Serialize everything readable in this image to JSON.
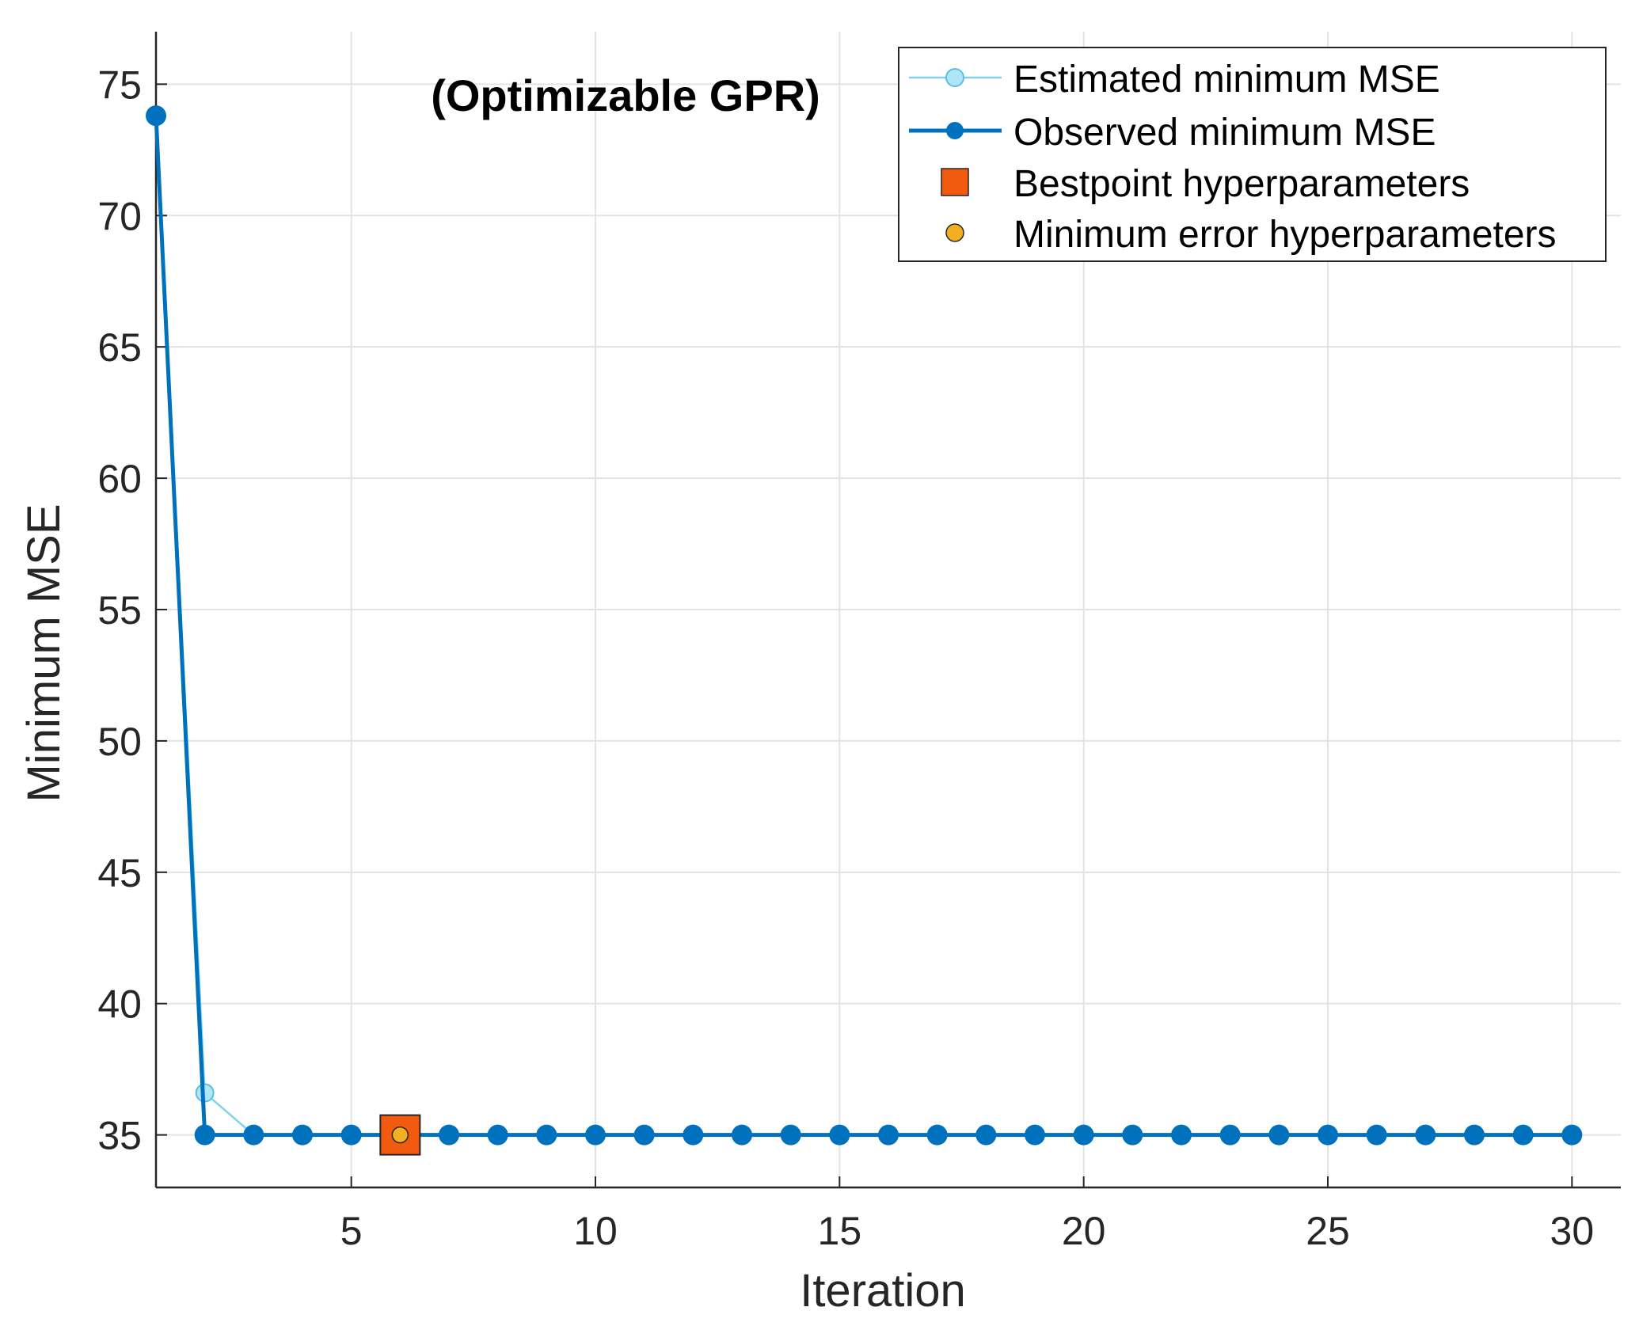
{
  "chart_data": {
    "type": "line",
    "title": "(Optimizable GPR)",
    "xlabel": "Iteration",
    "ylabel": "Minimum MSE",
    "xlim": [
      1,
      31
    ],
    "ylim": [
      33,
      77
    ],
    "xticks": [
      5,
      10,
      15,
      20,
      25,
      30
    ],
    "yticks": [
      35,
      40,
      45,
      50,
      55,
      60,
      65,
      70,
      75
    ],
    "grid": true,
    "legend_position": "top-right",
    "series": [
      {
        "name": "Estimated minimum MSE",
        "color": "#7fd3ef",
        "x": [
          1,
          2,
          3,
          4,
          5,
          6,
          7,
          8,
          9,
          10,
          11,
          12,
          13,
          14,
          15,
          16,
          17,
          18,
          19,
          20,
          21,
          22,
          23,
          24,
          25,
          26,
          27,
          28,
          29,
          30
        ],
        "y": [
          73.8,
          36.6,
          35,
          35,
          35,
          35,
          35,
          35,
          35,
          35,
          35,
          35,
          35,
          35,
          35,
          35,
          35,
          35,
          35,
          35,
          35,
          35,
          35,
          35,
          35,
          35,
          35,
          35,
          35,
          35
        ]
      },
      {
        "name": "Observed minimum MSE",
        "color": "#0072bd",
        "x": [
          1,
          2,
          3,
          4,
          5,
          6,
          7,
          8,
          9,
          10,
          11,
          12,
          13,
          14,
          15,
          16,
          17,
          18,
          19,
          20,
          21,
          22,
          23,
          24,
          25,
          26,
          27,
          28,
          29,
          30
        ],
        "y": [
          73.8,
          35,
          35,
          35,
          35,
          35,
          35,
          35,
          35,
          35,
          35,
          35,
          35,
          35,
          35,
          35,
          35,
          35,
          35,
          35,
          35,
          35,
          35,
          35,
          35,
          35,
          35,
          35,
          35,
          35
        ]
      }
    ],
    "markers": [
      {
        "name": "Bestpoint hyperparameters",
        "shape": "square",
        "color": "#f25a0f",
        "x": 6,
        "y": 35
      },
      {
        "name": "Minimum error hyperparameters",
        "shape": "circle",
        "color": "#f2b021",
        "x": 6,
        "y": 35
      }
    ]
  }
}
